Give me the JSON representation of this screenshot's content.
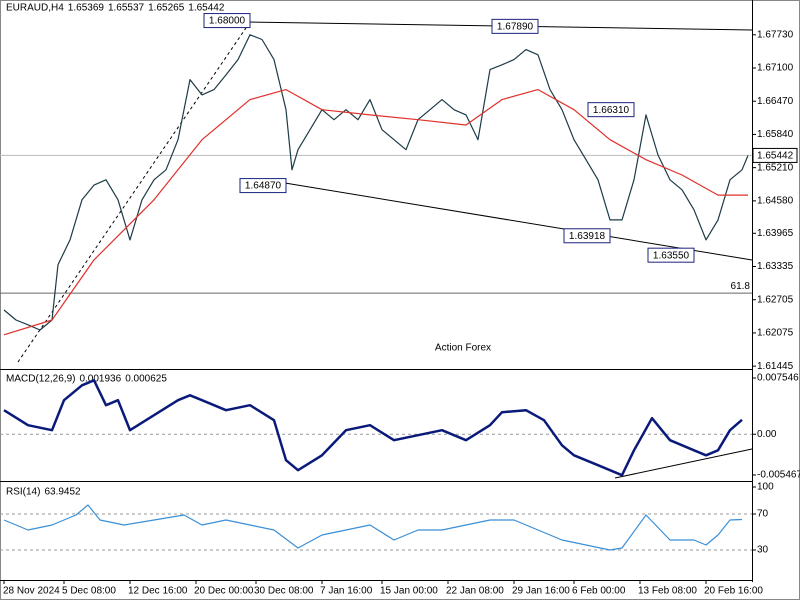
{
  "chart_data": [
    {
      "type": "line",
      "title": "EURAUD,H4",
      "ohlc": [
        1.65369,
        1.65537,
        1.65265,
        1.65442
      ],
      "watermark": "Action Forex",
      "xlim": [
        0,
        124
      ],
      "xticks": [
        {
          "value": 0,
          "label": "28 Nov 2024"
        },
        {
          "value": 10,
          "label": "5 Dec 08:00"
        },
        {
          "value": 21,
          "label": "12 Dec 16:00"
        },
        {
          "value": 32,
          "label": "20 Dec 00:00"
        },
        {
          "value": 42,
          "label": "30 Dec 08:00"
        },
        {
          "value": 53,
          "label": "7 Jan 16:00"
        },
        {
          "value": 63,
          "label": "15 Jan 00:00"
        },
        {
          "value": 74,
          "label": "22 Jan 08:00"
        },
        {
          "value": 85,
          "label": "29 Jan 16:00"
        },
        {
          "value": 95,
          "label": "6 Feb 00:00"
        },
        {
          "value": 106,
          "label": "13 Feb 08:00"
        },
        {
          "value": 117,
          "label": "20 Feb 16:00"
        }
      ],
      "ylim": [
        1.6141,
        1.6839
      ],
      "yticks": [
        {
          "value": 1.6773,
          "label": "1.67730"
        },
        {
          "value": 1.671,
          "label": "1.67100"
        },
        {
          "value": 1.6647,
          "label": "1.66470"
        },
        {
          "value": 1.6584,
          "label": "1.65840"
        },
        {
          "value": 1.6521,
          "label": "1.65210"
        },
        {
          "value": 1.6458,
          "label": "1.64580"
        },
        1.63965,
        1.63335,
        1.62705,
        1.62075,
        1.61445
      ],
      "last": 1.65442,
      "fibo": {
        "ratio": 61.8,
        "level": 1.6283
      },
      "annotations": [
        {
          "value": 1.68,
          "label": "1.68000",
          "x": 41
        },
        {
          "value": 1.6789,
          "label": "1.67890",
          "x": 89
        },
        {
          "value": 1.6631,
          "label": "1.66310",
          "x": 105
        },
        {
          "value": 1.6487,
          "label": "1.64870",
          "x": 47
        },
        {
          "value": 1.63918,
          "label": "1.63918",
          "x": 101
        },
        {
          "value": 1.6355,
          "label": "1.63550",
          "x": 115
        }
      ],
      "series": [
        {
          "color": "#1c3b46",
          "x": [
            0,
            2,
            4,
            6,
            8,
            9,
            11,
            13,
            15,
            17,
            19,
            21,
            23,
            25,
            27,
            29,
            31,
            33,
            35,
            37,
            39,
            41,
            43,
            45,
            47,
            48,
            49,
            51,
            53,
            55,
            57,
            59,
            61,
            63,
            65,
            67,
            69,
            71,
            73,
            75,
            77,
            79,
            81,
            83,
            85,
            87,
            89,
            91,
            93,
            95,
            97,
            99,
            101,
            103,
            105,
            107,
            109,
            111,
            113,
            115,
            117,
            119,
            121,
            123,
            124
          ],
          "values": [
            1.6251,
            1.6232,
            1.6223,
            1.6213,
            1.6232,
            1.6337,
            1.6384,
            1.646,
            1.6488,
            1.6498,
            1.646,
            1.6384,
            1.646,
            1.6498,
            1.6517,
            1.6574,
            1.6688,
            1.6659,
            1.6669,
            1.6697,
            1.6726,
            1.6773,
            1.6764,
            1.6726,
            1.6631,
            1.6517,
            1.6555,
            1.6593,
            1.6631,
            1.6612,
            1.6631,
            1.6612,
            1.665,
            1.6593,
            1.6574,
            1.6555,
            1.6612,
            1.6631,
            1.665,
            1.6631,
            1.6621,
            1.6574,
            1.6707,
            1.6716,
            1.6726,
            1.6745,
            1.6735,
            1.6669,
            1.6631,
            1.6574,
            1.6536,
            1.6498,
            1.6422,
            1.6422,
            1.6498,
            1.6621,
            1.6545,
            1.6498,
            1.6479,
            1.6441,
            1.6384,
            1.6422,
            1.6498,
            1.6517,
            1.6544
          ]
        },
        {
          "color": "#e0302a",
          "x": [
            0,
            8,
            15,
            25,
            33,
            41,
            47,
            53,
            61,
            69,
            77,
            83,
            89,
            95,
            101,
            107,
            113,
            119,
            124
          ],
          "values": [
            1.6204,
            1.6232,
            1.6346,
            1.646,
            1.6574,
            1.665,
            1.6669,
            1.6631,
            1.6621,
            1.6612,
            1.6602,
            1.665,
            1.6669,
            1.6631,
            1.6574,
            1.6536,
            1.6507,
            1.6469,
            1.6469
          ]
        }
      ]
    },
    {
      "type": "line",
      "title": "MACD(12,26,9)",
      "readings": [
        0.001936,
        0.000625
      ],
      "ylim": [
        -0.00614,
        0.00835
      ],
      "yticks": [
        0.007546,
        {
          "value": 0,
          "label": "0.00"
        },
        -0.005467
      ],
      "series": [
        {
          "color": "#0a1a7a",
          "x": [
            0,
            4,
            8,
            10,
            13,
            15,
            17,
            19,
            21,
            25,
            29,
            31,
            33,
            37,
            41,
            45,
            47,
            49,
            53,
            57,
            61,
            65,
            69,
            73,
            77,
            81,
            83,
            87,
            90,
            93,
            95,
            99,
            103,
            105,
            108,
            111,
            115,
            117,
            119,
            121,
            123
          ],
          "values": [
            0.00322,
            0.00121,
            0.00054,
            0.00456,
            0.00657,
            0.00724,
            0.00389,
            0.00456,
            0.00054,
            0.00255,
            0.00456,
            0.00523,
            0.00456,
            0.00322,
            0.00389,
            0.00188,
            -0.00349,
            -0.00483,
            -0.00282,
            0.00054,
            0.00121,
            -0.0008,
            -0.00013,
            0.00054,
            -0.0008,
            0.00121,
            0.00295,
            0.00322,
            0.00188,
            -0.00148,
            -0.00282,
            -0.00416,
            -0.0055,
            -0.00215,
            0.00215,
            -0.0008,
            -0.00215,
            -0.00282,
            -0.00215,
            0.00054,
            0.00194
          ]
        }
      ]
    },
    {
      "type": "line",
      "title": "RSI(14)",
      "readings": [
        63.9452
      ],
      "ylim": [
        0,
        100
      ],
      "yticks": [
        100,
        70,
        30
      ],
      "series": [
        {
          "color": "#3a8fd6",
          "x": [
            0,
            4,
            8,
            12,
            14,
            16,
            20,
            25,
            30,
            33,
            37,
            41,
            45,
            49,
            53,
            57,
            61,
            65,
            69,
            73,
            77,
            81,
            85,
            89,
            93,
            97,
            101,
            103,
            107,
            111,
            115,
            117,
            119,
            121,
            123
          ],
          "values": [
            63.3,
            52.2,
            57.8,
            68.9,
            80,
            63.3,
            57.8,
            63.3,
            68.9,
            57.8,
            63.3,
            57.8,
            52.2,
            32.2,
            46.7,
            52.2,
            57.8,
            41.1,
            52.2,
            52.2,
            57.8,
            63.3,
            63.3,
            52.2,
            41.1,
            35.6,
            30,
            32.2,
            68.9,
            41.1,
            41.1,
            35.6,
            46.7,
            63.3,
            63.9
          ]
        }
      ]
    }
  ]
}
